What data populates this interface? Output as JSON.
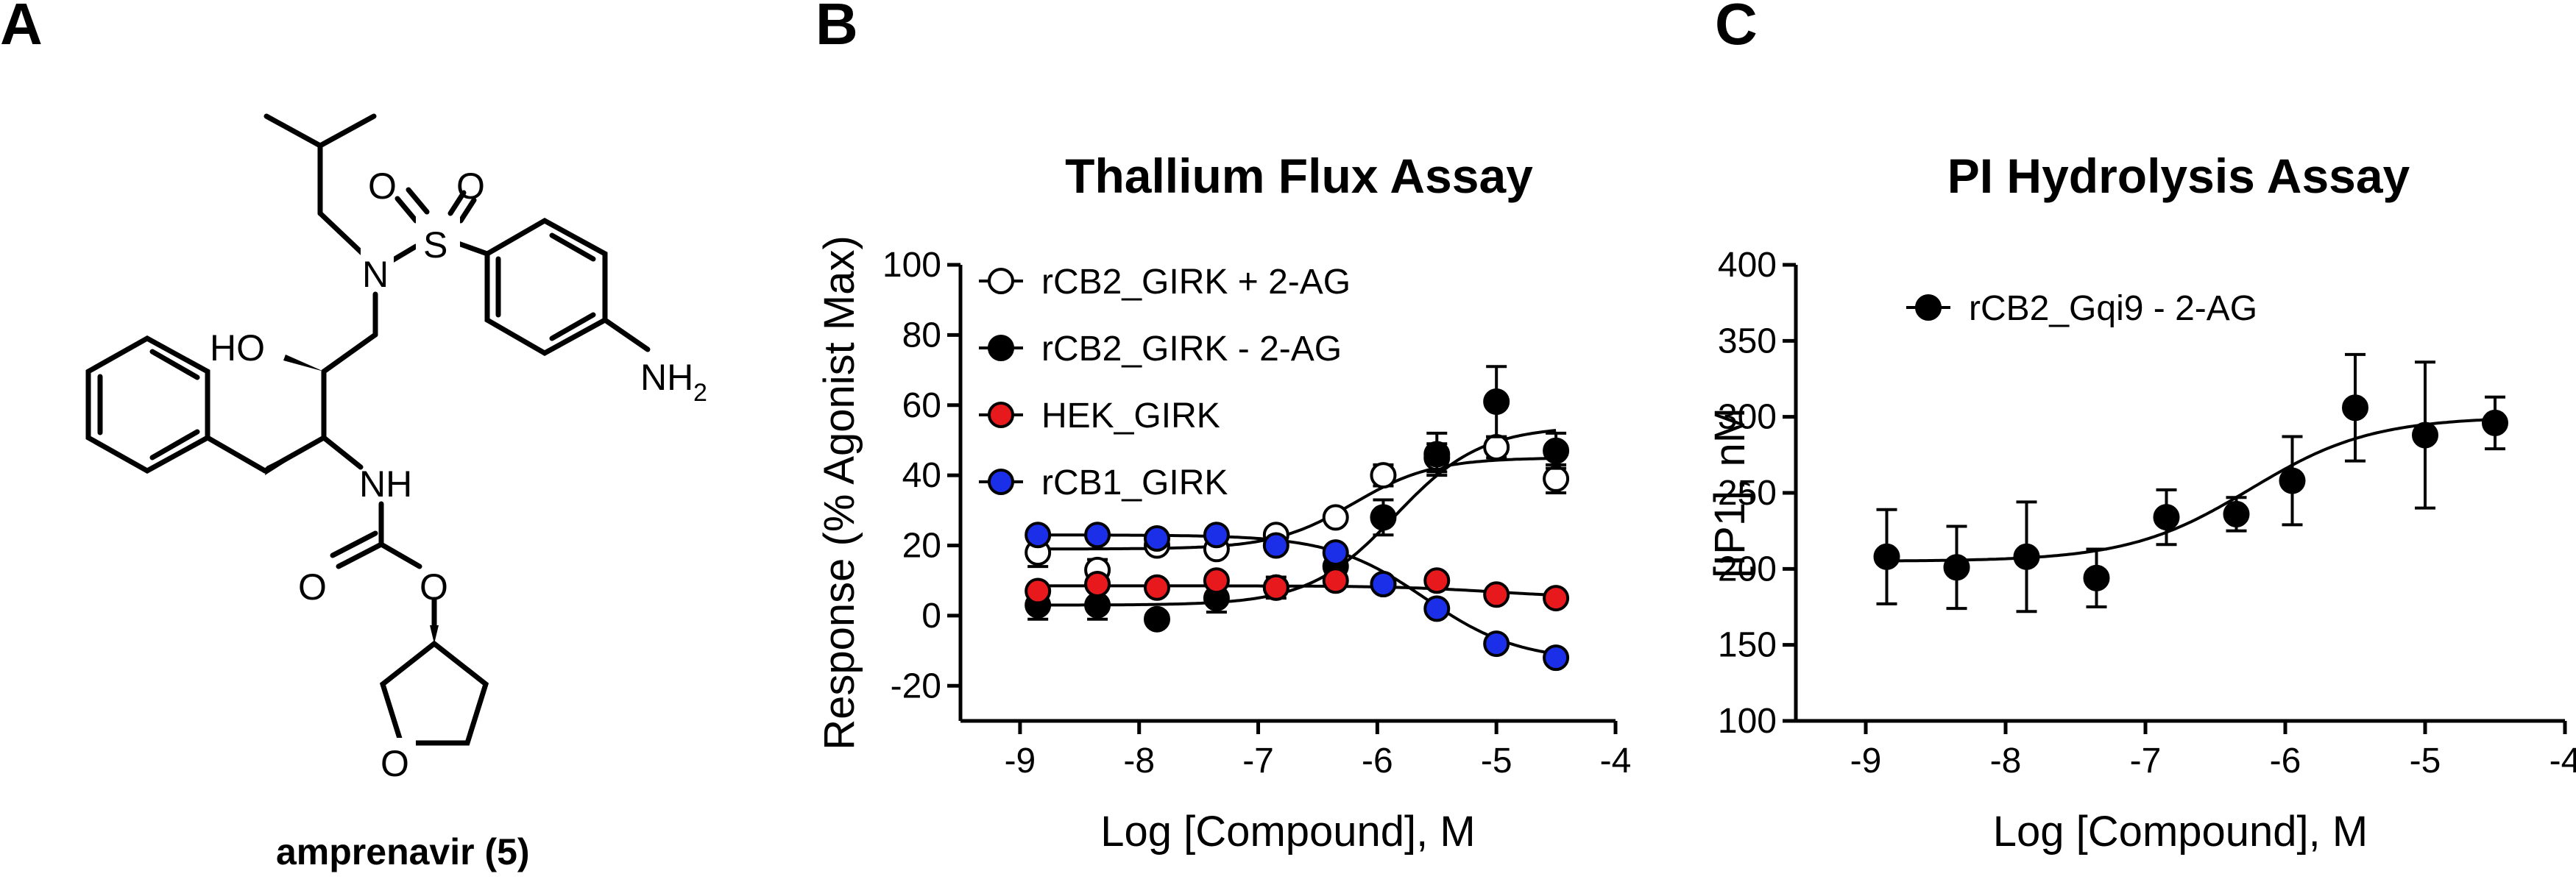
{
  "panels": {
    "a": {
      "letter": "A"
    },
    "b": {
      "letter": "B"
    },
    "c": {
      "letter": "C"
    }
  },
  "molecule": {
    "caption": "amprenavir (5)",
    "atoms": {
      "o1": "O",
      "s": "S",
      "o2": "O",
      "n_sulfonamide": "N",
      "ho": "HO",
      "nh2_n": "NH",
      "nh2_sub": "2",
      "nh": "NH",
      "o_carbonyl": "O",
      "o_ester": "O",
      "o_ring": "O"
    }
  },
  "chart_data": [
    {
      "type": "scatter",
      "title": "Thallium Flux Assay",
      "xlabel": "Log [Compound], M",
      "ylabel": "Response (% Agonist Max)",
      "xlim": [
        -9.5,
        -4
      ],
      "ylim": [
        -30,
        100
      ],
      "xticks": [
        -9,
        -8,
        -7,
        -6,
        -5,
        -4
      ],
      "xtick_labels": [
        "-9",
        "-8",
        "-7",
        "-6",
        "-5",
        "-4"
      ],
      "yticks": [
        -20,
        0,
        20,
        40,
        60,
        80,
        100
      ],
      "ytick_labels": [
        "-20",
        "0",
        "20",
        "40",
        "60",
        "80",
        "100"
      ],
      "grid": false,
      "legend_position": "top-left",
      "error_bars": true,
      "series": [
        {
          "name": "rCB2_GIRK + 2-AG",
          "marker": "open-circle",
          "color": "#000000",
          "x": [
            -8.85,
            -8.35,
            -7.85,
            -7.35,
            -6.85,
            -6.35,
            -5.95,
            -5.5,
            -5.0,
            -4.5
          ],
          "y": [
            18,
            13,
            20,
            19,
            23,
            28,
            40,
            45,
            48,
            39
          ],
          "err": [
            4,
            3,
            2,
            2,
            2,
            2,
            3,
            4,
            3,
            4
          ],
          "fit": {
            "bottom": 19,
            "top": 45,
            "logec50": -6.2,
            "hill": 1.3
          }
        },
        {
          "name": "rCB2_GIRK - 2-AG",
          "marker": "filled-circle",
          "color": "#000000",
          "x": [
            -8.85,
            -8.35,
            -7.85,
            -7.35,
            -6.85,
            -6.35,
            -5.95,
            -5.5,
            -5.0,
            -4.5
          ],
          "y": [
            3,
            3,
            -1,
            5,
            8,
            14,
            28,
            46,
            61,
            47
          ],
          "err": [
            4,
            4,
            2,
            4,
            3,
            4,
            5,
            6,
            10,
            5
          ],
          "fit": {
            "bottom": 3,
            "top": 54,
            "logec50": -5.85,
            "hill": 1.2
          }
        },
        {
          "name": "HEK_GIRK",
          "marker": "filled-circle",
          "color": "#e8191c",
          "x": [
            -8.85,
            -8.35,
            -7.85,
            -7.35,
            -6.85,
            -6.35,
            -5.95,
            -5.5,
            -5.0,
            -4.5
          ],
          "y": [
            7,
            9,
            8,
            10,
            8,
            10,
            9,
            10,
            6,
            5
          ],
          "err": [
            1,
            1,
            1,
            1,
            1,
            1,
            1,
            1,
            1,
            1
          ],
          "fit": {
            "bottom": 8.5,
            "top": 5,
            "logec50": -5.0,
            "hill": 1.0
          }
        },
        {
          "name": "rCB1_GIRK",
          "marker": "filled-circle",
          "color": "#1c2fe8",
          "x": [
            -8.85,
            -8.35,
            -7.85,
            -7.35,
            -6.85,
            -6.35,
            -5.95,
            -5.5,
            -5.0,
            -4.5
          ],
          "y": [
            23,
            23,
            22,
            23,
            20,
            18,
            9,
            2,
            -8,
            -12
          ],
          "err": [
            1,
            1,
            1,
            1,
            1,
            1,
            1,
            1,
            1,
            1
          ],
          "fit": {
            "bottom": 23,
            "top": -13,
            "logec50": -5.6,
            "hill": 1.1
          }
        }
      ]
    },
    {
      "type": "scatter",
      "title": "PI Hydrolysis Assay",
      "xlabel": "Log [Compound], M",
      "ylabel": "[IP1], nM",
      "xlim": [
        -9.5,
        -4
      ],
      "ylim": [
        100,
        400
      ],
      "xticks": [
        -9,
        -8,
        -7,
        -6,
        -5,
        -4
      ],
      "xtick_labels": [
        "-9",
        "-8",
        "-7",
        "-6",
        "-5",
        "-4"
      ],
      "yticks": [
        100,
        150,
        200,
        250,
        300,
        350,
        400
      ],
      "ytick_labels": [
        "100",
        "150",
        "200",
        "250",
        "300",
        "350",
        "400"
      ],
      "grid": false,
      "legend_position": "top-left",
      "error_bars": true,
      "series": [
        {
          "name": "rCB2_Gqi9 - 2-AG",
          "marker": "filled-circle",
          "color": "#000000",
          "x": [
            -8.85,
            -8.35,
            -7.85,
            -7.35,
            -6.85,
            -6.35,
            -5.95,
            -5.5,
            -5.0,
            -4.5
          ],
          "y": [
            208,
            201,
            208,
            194,
            234,
            236,
            258,
            306,
            288,
            296
          ],
          "err": [
            31,
            27,
            36,
            19,
            18,
            11,
            29,
            35,
            48,
            17
          ],
          "fit": {
            "bottom": 205,
            "top": 300,
            "logec50": -6.25,
            "hill": 1.0
          }
        }
      ]
    }
  ]
}
